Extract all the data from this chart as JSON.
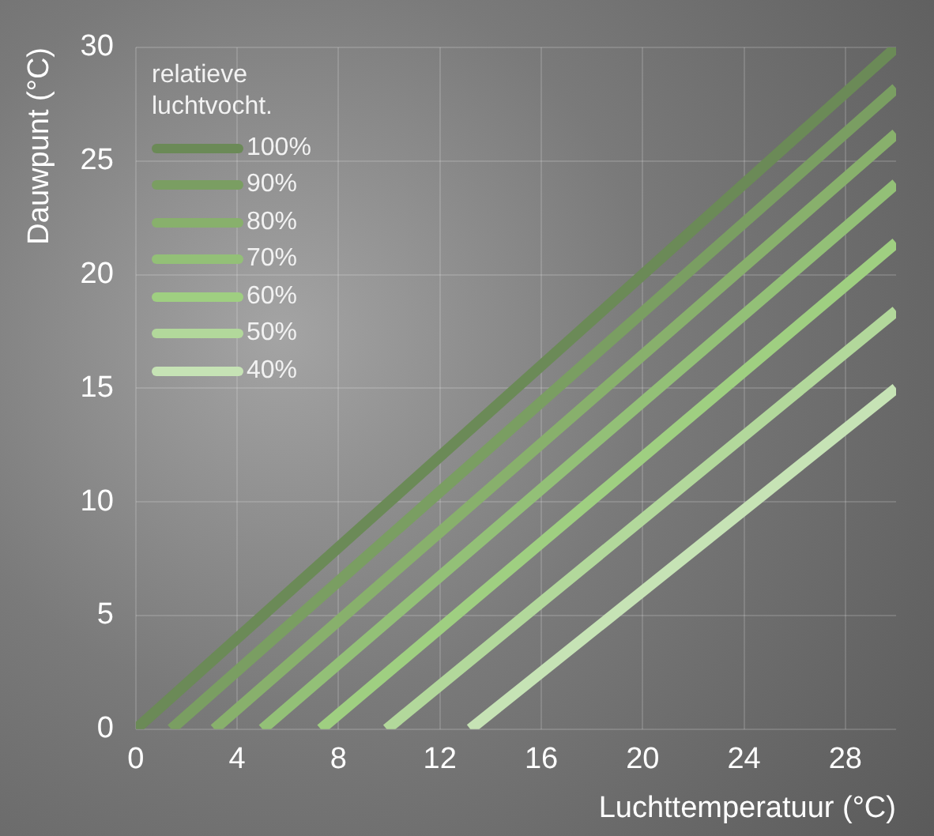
{
  "chart_data": {
    "type": "line",
    "xlabel": "Luchttemperatuur (°C)",
    "ylabel": "Dauwpunt (°C)",
    "legend_title": "relatieve luchtvocht.",
    "legend": "top left",
    "xlim": [
      0,
      30
    ],
    "ylim": [
      0,
      30
    ],
    "xticks": [
      0,
      4,
      8,
      12,
      16,
      20,
      24,
      28
    ],
    "yticks": [
      0,
      5,
      10,
      15,
      20,
      25,
      30
    ],
    "grid": true,
    "marker": "none",
    "line_style": "solid",
    "series": [
      {
        "name": "100%",
        "color": "#6b8a57",
        "x": [
          0,
          30
        ],
        "values": [
          0,
          30
        ]
      },
      {
        "name": "90%",
        "color": "#7a9e62",
        "x": [
          1.4,
          30
        ],
        "values": [
          0,
          28.2
        ]
      },
      {
        "name": "80%",
        "color": "#88b06c",
        "x": [
          3.1,
          30
        ],
        "values": [
          0,
          26.2
        ]
      },
      {
        "name": "70%",
        "color": "#93c077",
        "x": [
          5,
          30
        ],
        "values": [
          0,
          24
        ]
      },
      {
        "name": "60%",
        "color": "#9fcf81",
        "x": [
          7.3,
          30
        ],
        "values": [
          0,
          21.4
        ]
      },
      {
        "name": "50%",
        "color": "#b2d89b",
        "x": [
          9.9,
          30
        ],
        "values": [
          0,
          18.4
        ]
      },
      {
        "name": "40%",
        "color": "#c6e3b5",
        "x": [
          13.2,
          30
        ],
        "values": [
          0,
          15
        ]
      }
    ]
  }
}
